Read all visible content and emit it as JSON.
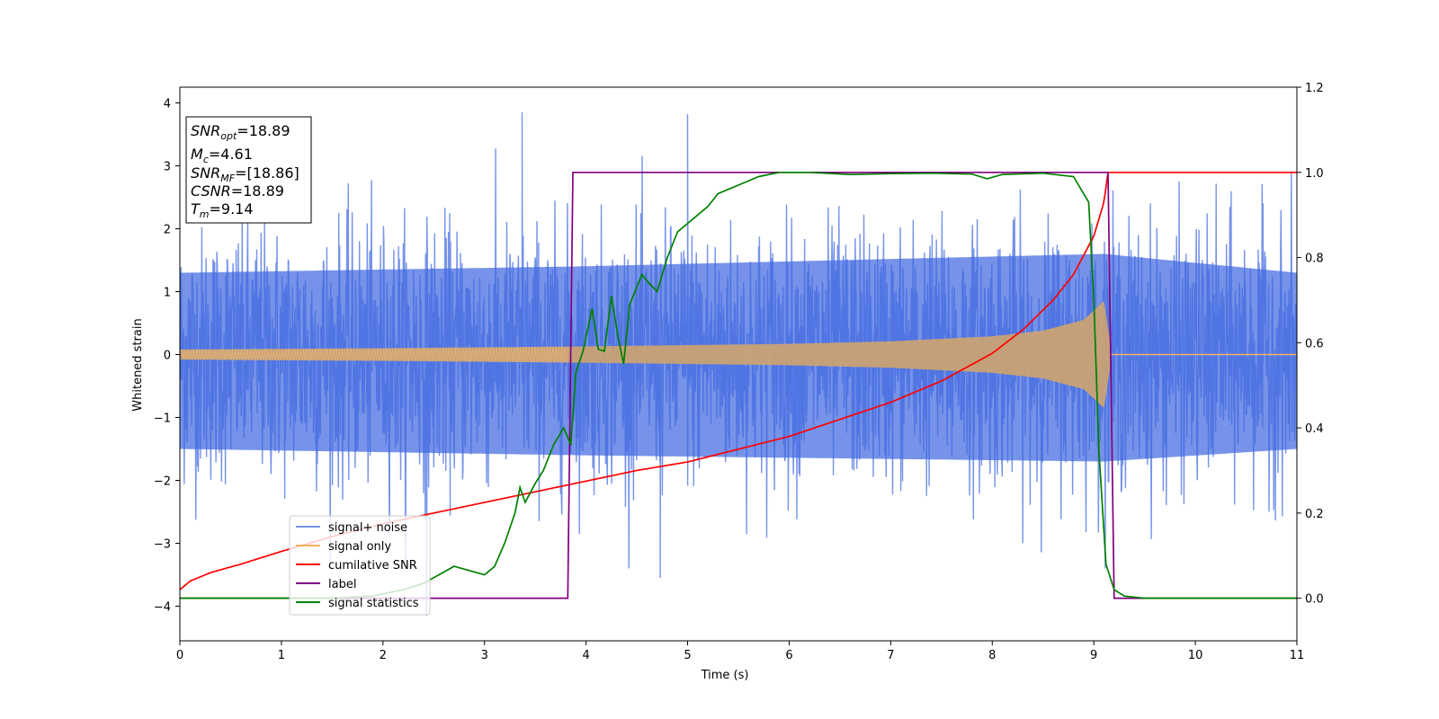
{
  "chart_data": {
    "type": "line",
    "xlabel": "Time (s)",
    "ylabel": "Whitened strain",
    "xlim": [
      0,
      11
    ],
    "ylim": [
      -4.55,
      4.25
    ],
    "y2lim": [
      -0.1,
      1.2
    ],
    "x_ticks": [
      0,
      1,
      2,
      3,
      4,
      5,
      6,
      7,
      8,
      9,
      10,
      11
    ],
    "x_tick_labels": [
      "0",
      "1",
      "2",
      "3",
      "4",
      "5",
      "6",
      "7",
      "8",
      "9",
      "10",
      "11"
    ],
    "y_ticks": [
      -4,
      -3,
      -2,
      -1,
      0,
      1,
      2,
      3,
      4
    ],
    "y_tick_labels": [
      "−4",
      "−3",
      "−2",
      "−1",
      "0",
      "1",
      "2",
      "3",
      "4"
    ],
    "y2_ticks": [
      0.0,
      0.2,
      0.4,
      0.6,
      0.8,
      1.0,
      1.2
    ],
    "y2_tick_labels": [
      "0.0",
      "0.2",
      "0.4",
      "0.6",
      "0.8",
      "1.0",
      "1.2"
    ],
    "grid": false,
    "legend_position": "bottom-left",
    "annotation_box": {
      "position": "top-left",
      "lines": [
        {
          "base": "SNR",
          "sub": "opt",
          "rest": "=18.89"
        },
        {
          "base": "M",
          "sub": "c",
          "rest": "=4.61"
        },
        {
          "base": "SNR",
          "sub": "MF",
          "rest": "=[18.86]"
        },
        {
          "base": "CSNR",
          "sub": "",
          "rest": "=18.89"
        },
        {
          "base": "T",
          "sub": "m",
          "rest": "=9.14"
        }
      ]
    },
    "series": [
      {
        "name": "signal+ noise",
        "axis": "left",
        "color": "#4169e1",
        "style": "noise",
        "noise_sigma": 1.0,
        "noise_peaks_approx": [
          [
            3.37,
            3.85
          ],
          [
            5.0,
            3.82
          ],
          [
            2.43,
            -4.15
          ],
          [
            4.73,
            -3.55
          ]
        ],
        "envelope_upper": [
          [
            0,
            1.3
          ],
          [
            3.9,
            1.4
          ],
          [
            9.1,
            1.6
          ],
          [
            11,
            1.3
          ]
        ],
        "envelope_lower": [
          [
            0,
            -1.5
          ],
          [
            3.9,
            -1.6
          ],
          [
            9.1,
            -1.7
          ],
          [
            11,
            -1.5
          ]
        ]
      },
      {
        "name": "signal only",
        "axis": "left",
        "color": "#f5b062",
        "style": "chirp",
        "amplitude_envelope": [
          [
            0,
            0.08
          ],
          [
            2,
            0.1
          ],
          [
            4,
            0.13
          ],
          [
            6,
            0.17
          ],
          [
            7,
            0.21
          ],
          [
            8,
            0.29
          ],
          [
            8.5,
            0.38
          ],
          [
            8.9,
            0.55
          ],
          [
            9.1,
            0.85
          ],
          [
            9.18,
            0.0
          ],
          [
            11,
            0.0
          ]
        ]
      },
      {
        "name": "cumilative SNR",
        "axis": "right",
        "color": "#ff0000",
        "x": [
          0,
          0.1,
          0.3,
          0.6,
          1,
          1.5,
          2,
          2.5,
          3,
          3.5,
          4,
          4.5,
          5,
          5.5,
          6,
          6.5,
          7,
          7.5,
          8,
          8.3,
          8.6,
          8.8,
          9,
          9.1,
          9.14,
          11
        ],
        "y": [
          0.02,
          0.04,
          0.06,
          0.08,
          0.11,
          0.145,
          0.175,
          0.2,
          0.225,
          0.25,
          0.275,
          0.3,
          0.32,
          0.35,
          0.38,
          0.42,
          0.46,
          0.51,
          0.575,
          0.63,
          0.7,
          0.76,
          0.85,
          0.93,
          1.0,
          1.0
        ]
      },
      {
        "name": "label",
        "axis": "right",
        "color": "#800080",
        "x": [
          0,
          3.82,
          3.87,
          9.14,
          9.2,
          11
        ],
        "y": [
          0,
          0,
          1,
          1,
          0,
          0
        ]
      },
      {
        "name": "signal statistics",
        "axis": "right",
        "color": "#008000",
        "x": [
          0,
          1.5,
          1.9,
          2.2,
          2.4,
          2.55,
          2.7,
          2.85,
          3.0,
          3.1,
          3.2,
          3.3,
          3.35,
          3.4,
          3.5,
          3.58,
          3.68,
          3.78,
          3.85,
          3.9,
          3.97,
          4.06,
          4.12,
          4.18,
          4.25,
          4.31,
          4.37,
          4.43,
          4.55,
          4.62,
          4.7,
          4.8,
          4.9,
          5.0,
          5.1,
          5.2,
          5.3,
          5.4,
          5.5,
          5.7,
          5.9,
          6.2,
          6.6,
          7.0,
          7.4,
          7.8,
          7.95,
          8.1,
          8.5,
          8.8,
          8.95,
          9.0,
          9.05,
          9.12,
          9.2,
          9.3,
          9.5,
          11
        ],
        "y": [
          0.0,
          0.0,
          0.005,
          0.02,
          0.035,
          0.055,
          0.075,
          0.065,
          0.055,
          0.075,
          0.13,
          0.2,
          0.26,
          0.225,
          0.27,
          0.3,
          0.36,
          0.4,
          0.36,
          0.53,
          0.58,
          0.68,
          0.585,
          0.58,
          0.71,
          0.62,
          0.55,
          0.69,
          0.76,
          0.74,
          0.72,
          0.8,
          0.86,
          0.88,
          0.9,
          0.92,
          0.95,
          0.96,
          0.97,
          0.99,
          1.0,
          1.0,
          0.995,
          0.997,
          0.998,
          0.996,
          0.985,
          0.995,
          0.998,
          0.99,
          0.93,
          0.7,
          0.35,
          0.08,
          0.02,
          0.005,
          0.0,
          0.0
        ]
      }
    ]
  }
}
